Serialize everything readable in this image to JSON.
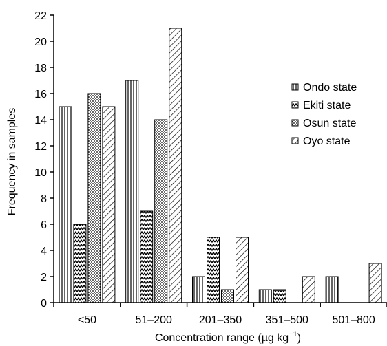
{
  "chart_data": {
    "type": "bar",
    "xlabel": "Concentration range (µg kg⁻¹)",
    "ylabel": "Frequency in samples",
    "categories": [
      "<50",
      "51–200",
      "201–350",
      "351–500",
      "501–800"
    ],
    "series": [
      {
        "name": "Ondo state",
        "pattern": "vertical-lines",
        "values": [
          15,
          17,
          2,
          1,
          2
        ]
      },
      {
        "name": "Ekiti state",
        "pattern": "zigzag",
        "values": [
          6,
          7,
          5,
          1,
          0
        ]
      },
      {
        "name": "Osun state",
        "pattern": "dots",
        "values": [
          16,
          14,
          1,
          0,
          0
        ]
      },
      {
        "name": "Oyo state",
        "pattern": "diagonal-lines",
        "values": [
          15,
          21,
          5,
          2,
          3
        ]
      }
    ],
    "ylim": [
      0,
      22
    ],
    "yticks": [
      0,
      2,
      4,
      6,
      8,
      10,
      12,
      14,
      16,
      18,
      20,
      22
    ],
    "legend_position": "right",
    "grid": false
  }
}
